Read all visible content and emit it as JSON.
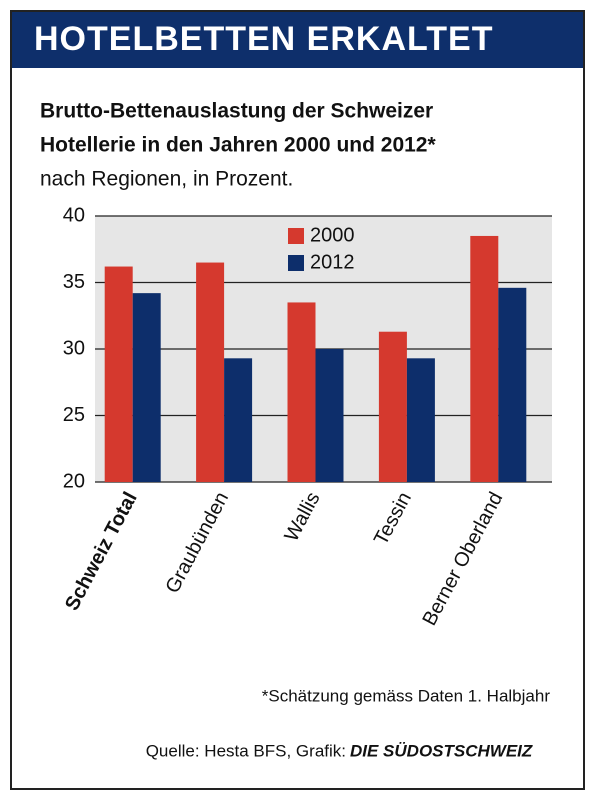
{
  "chart_data": {
    "type": "bar",
    "header": "HOTELBETTEN ERKALTET",
    "title": [
      "Brutto-Bettenauslastung der Schweizer",
      "Hotellerie in den Jahren 2000 und 2012*"
    ],
    "subtitle": "nach Regionen, in Prozent.",
    "categories": [
      "Schweiz Total",
      "Graubünden",
      "Wallis",
      "Tessin",
      "Berner Oberland"
    ],
    "series": [
      {
        "name": "2000",
        "color": "#d5392e",
        "values": [
          36.2,
          36.5,
          33.5,
          31.3,
          38.5
        ]
      },
      {
        "name": "2012",
        "color": "#0d2e6b",
        "values": [
          34.2,
          29.3,
          30.0,
          29.3,
          34.6
        ]
      }
    ],
    "ylim": [
      20,
      40
    ],
    "yticks": [
      20,
      25,
      30,
      35,
      40
    ],
    "grid": true,
    "footnote": "*Schätzung gemäss Daten 1. Halbjahr",
    "source": "Quelle: Hesta BFS, Grafik:",
    "publisher": "DIE SÜDOSTSCHWEIZ"
  }
}
